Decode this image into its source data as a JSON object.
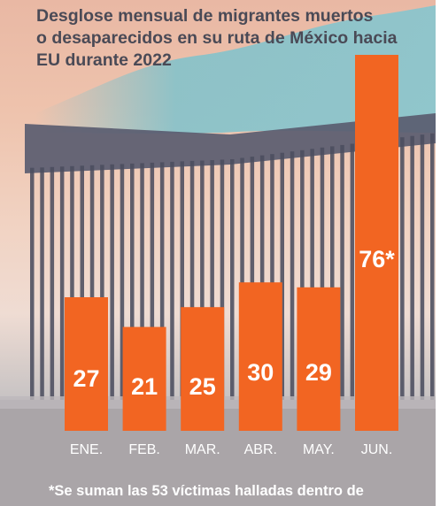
{
  "chart_data": {
    "type": "bar",
    "title_lines": [
      "Desglose mensual de migrantes muertos",
      "o desaparecidos en su ruta de México hacia",
      "EU durante 2022"
    ],
    "categories": [
      "ENE.",
      "FEB.",
      "MAR.",
      "ABR.",
      "MAY.",
      "JUN."
    ],
    "values": [
      27,
      21,
      25,
      30,
      29,
      76
    ],
    "value_labels": [
      "27",
      "21",
      "25",
      "30",
      "29",
      "76*"
    ],
    "ylim": [
      0,
      76
    ],
    "bar_color": "#f26522",
    "xlabel": "",
    "ylabel": "",
    "grid": false,
    "legend": "none",
    "footnote": "*Se suman las 53 víctimas halladas dentro de"
  }
}
